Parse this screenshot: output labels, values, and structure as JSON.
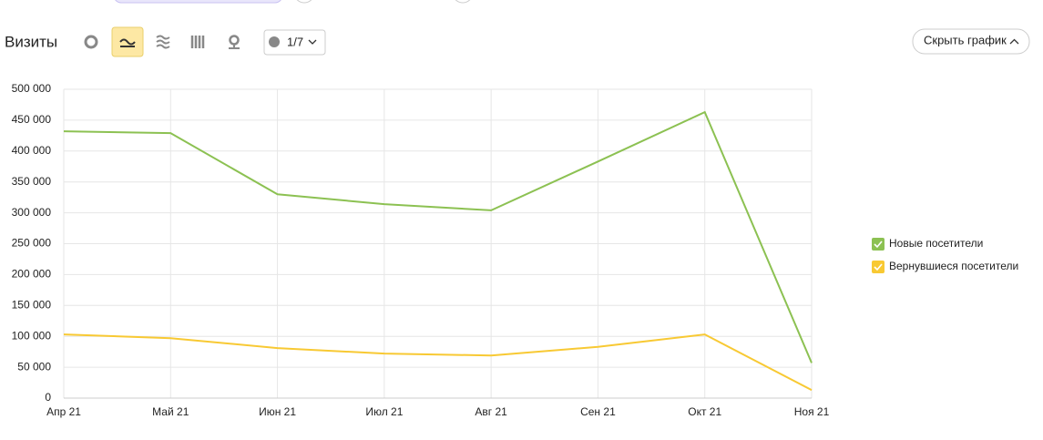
{
  "toolbar": {
    "title": "Визиты",
    "comments": "1/7",
    "hide_chart": "Скрыть график"
  },
  "chart_data": {
    "type": "line",
    "categories": [
      "Апр 21",
      "Май 21",
      "Июн 21",
      "Июл 21",
      "Авг 21",
      "Сен 21",
      "Окт 21",
      "Ноя 21"
    ],
    "series": [
      {
        "name": "Новые посетители",
        "color": "#8cc152",
        "values": [
          432000,
          429000,
          330000,
          314000,
          304000,
          383000,
          463000,
          57000
        ]
      },
      {
        "name": "Вернувшиеся посетители",
        "color": "#f8c933",
        "values": [
          103000,
          97000,
          81000,
          72000,
          69000,
          83000,
          103000,
          13000
        ]
      }
    ],
    "ylim": [
      0,
      500000
    ],
    "yticks": [
      0,
      {
        "value": 50000,
        "label": "50 000"
      },
      {
        "value": 100000,
        "label": "100 000"
      },
      {
        "value": 150000,
        "label": "150 000"
      },
      {
        "value": 200000,
        "label": "200 000"
      },
      {
        "value": 250000,
        "label": "250 000"
      },
      {
        "value": 300000,
        "label": "300 000"
      },
      {
        "value": 350000,
        "label": "350 000"
      },
      {
        "value": 400000,
        "label": "400 000"
      },
      {
        "value": 450000,
        "label": "450 000"
      },
      {
        "value": 500000,
        "label": "500 000"
      }
    ],
    "grid": true,
    "legend": "right"
  }
}
